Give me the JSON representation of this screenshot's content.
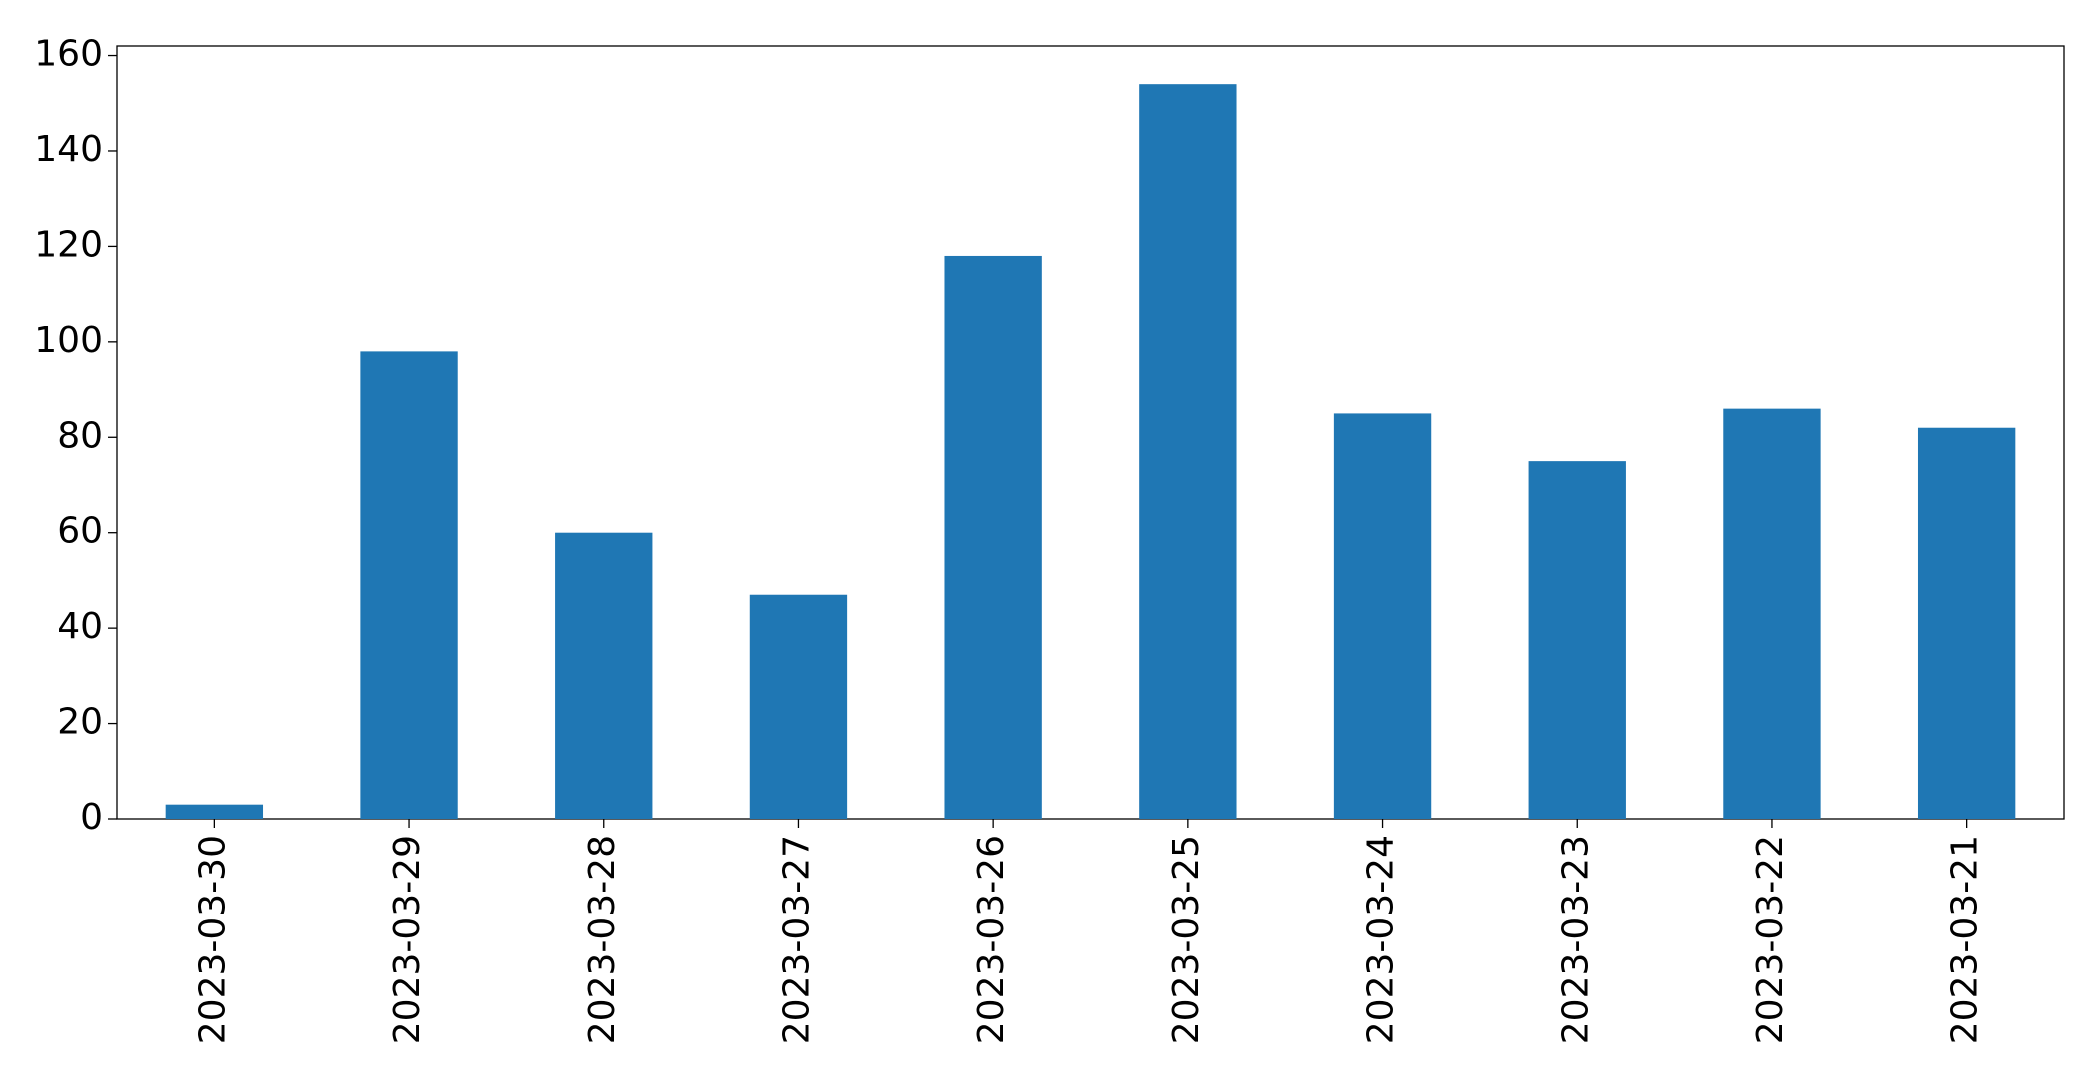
{
  "chart_data": {
    "type": "bar",
    "categories": [
      "2023-03-30",
      "2023-03-29",
      "2023-03-28",
      "2023-03-27",
      "2023-03-26",
      "2023-03-25",
      "2023-03-24",
      "2023-03-23",
      "2023-03-22",
      "2023-03-21"
    ],
    "values": [
      3,
      98,
      60,
      47,
      118,
      154,
      85,
      75,
      86,
      82
    ],
    "color": "#1f77b4",
    "ylim": [
      0,
      162
    ],
    "yticks": [
      0,
      20,
      40,
      60,
      80,
      100,
      120,
      140,
      160
    ],
    "grid": false
  }
}
